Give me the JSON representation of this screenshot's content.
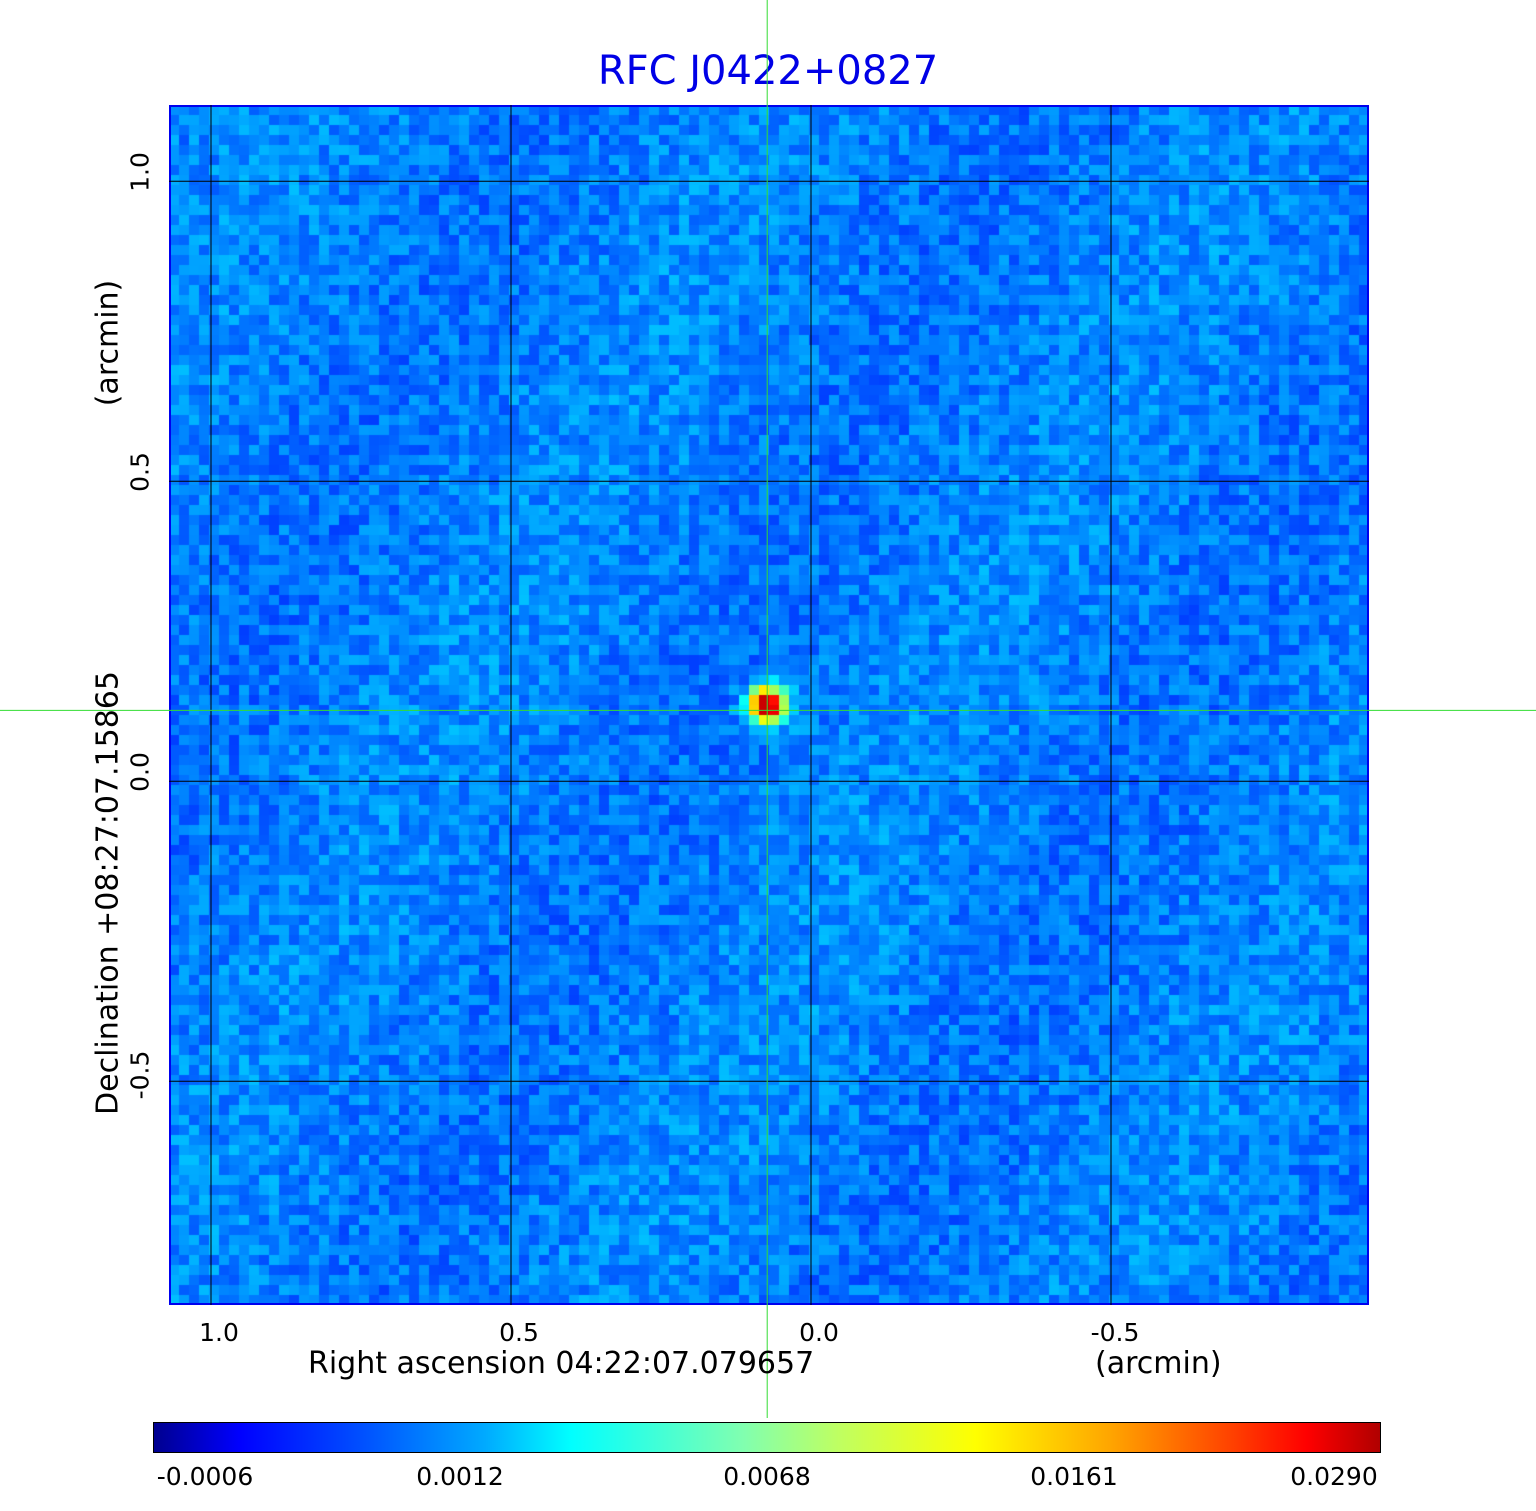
{
  "chart_data": {
    "type": "heatmap",
    "title": "RFC J0422+0827",
    "xlabel": "Right ascension  04:22:07.079657",
    "xunit": "(arcmin)",
    "ylabel": "Declination  +08:27:07.15865",
    "yunit": "(arcmin)",
    "xlim": [
      1.07,
      -0.93
    ],
    "ylim": [
      -0.873,
      1.127
    ],
    "xticks": [
      "1.0",
      "0.5",
      "0.0",
      "-0.5"
    ],
    "xtick_values": [
      1.0,
      0.5,
      0.0,
      -0.5
    ],
    "yticks": [
      "1.0",
      "0.5",
      "0.0",
      "-0.5"
    ],
    "ytick_values": [
      1.0,
      0.5,
      0.0,
      -0.5
    ],
    "grid": true,
    "colormap": "jet",
    "colorbar": {
      "ticks": [
        "-0.0006",
        "0.0012",
        "0.0068",
        "0.0161",
        "0.0290"
      ],
      "min": -0.0006,
      "max": 0.029,
      "placement": "bottom"
    },
    "source": {
      "x": 0.073,
      "y": 0.118,
      "peak": 0.029
    },
    "crosshair": {
      "x": 0.073,
      "y": 0.118,
      "color": "#33dd33"
    }
  },
  "colors": {
    "title": "#0000e6",
    "frame": "#0000ee",
    "grid": "#000000"
  }
}
